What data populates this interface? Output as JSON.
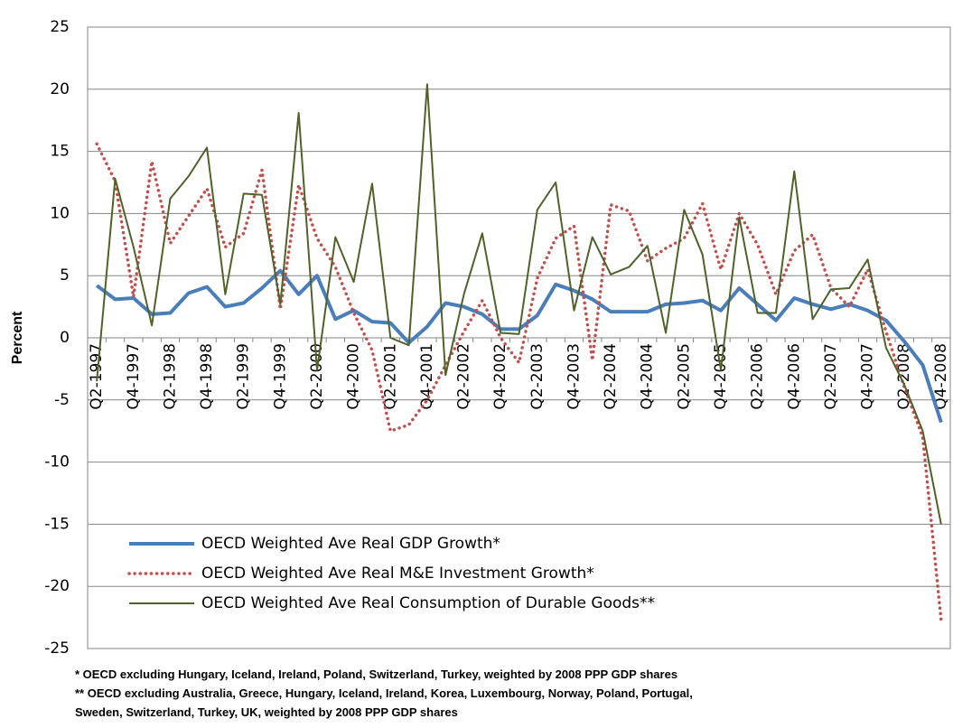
{
  "chart_data": {
    "type": "line",
    "y_label": "Percent",
    "categories": [
      "Q2-1997",
      null,
      "Q4-1997",
      null,
      "Q2-1998",
      null,
      "Q4-1998",
      null,
      "Q2-1999",
      null,
      "Q4-1999",
      null,
      "Q2-2000",
      null,
      "Q4-2000",
      null,
      "Q2-2001",
      null,
      "Q4-2001",
      null,
      "Q2-2002",
      null,
      "Q4-2002",
      null,
      "Q2-2003",
      null,
      "Q4-2003",
      null,
      "Q2-2004",
      null,
      "Q4-2004",
      null,
      "Q2-2005",
      null,
      "Q4-2005",
      null,
      "Q2-2006",
      null,
      "Q4-2006",
      null,
      "Q2-2007",
      null,
      "Q4-2007",
      null,
      "Q2-2008",
      null,
      "Q4-2008"
    ],
    "series": [
      {
        "name": "OECD Weighted Ave Real GDP Growth*",
        "color": "#4a7ebb",
        "style": "solid",
        "width": 4,
        "values": [
          4.2,
          3.1,
          3.2,
          1.9,
          2.0,
          3.6,
          4.1,
          2.5,
          2.8,
          4.0,
          5.4,
          3.5,
          5.0,
          1.5,
          2.2,
          1.3,
          1.2,
          -0.4,
          0.9,
          2.8,
          2.5,
          1.9,
          0.7,
          0.7,
          1.8,
          4.3,
          3.8,
          3.1,
          2.1,
          2.1,
          2.1,
          2.7,
          2.8,
          3.0,
          2.2,
          4.0,
          2.7,
          1.4,
          3.2,
          2.7,
          2.3,
          2.7,
          2.2,
          1.4,
          -0.3,
          -2.2,
          -6.8
        ]
      },
      {
        "name": "OECD Weighted Ave Real M&E Investment Growth*",
        "color": "#c0504d",
        "style": "dotted",
        "width": 3.5,
        "values": [
          15.6,
          12.6,
          3.3,
          14.2,
          7.6,
          9.8,
          12.0,
          7.3,
          8.4,
          13.5,
          2.3,
          12.3,
          8.0,
          5.7,
          2.0,
          -1.0,
          -7.5,
          -7.0,
          -5.0,
          -2.2,
          0.5,
          3.0,
          0.0,
          -2.0,
          4.8,
          8.0,
          9.0,
          -1.8,
          10.7,
          10.2,
          6.2,
          7.2,
          8.0,
          10.8,
          5.5,
          10.0,
          7.5,
          3.5,
          7.0,
          8.3,
          4.0,
          2.5,
          5.5,
          0.5,
          -4.0,
          -8.0,
          -22.7
        ]
      },
      {
        "name": "OECD Weighted Ave Real Consumption of Durable Goods**",
        "color": "#4f6228",
        "style": "solid",
        "width": 2,
        "values": [
          -3.5,
          12.8,
          7.3,
          1.0,
          11.2,
          13.0,
          15.3,
          3.5,
          11.6,
          11.5,
          2.7,
          18.1,
          -2.6,
          8.1,
          4.5,
          12.4,
          0.0,
          -0.6,
          20.4,
          -3.0,
          3.5,
          8.4,
          0.4,
          0.3,
          10.3,
          12.5,
          2.2,
          8.1,
          5.1,
          5.7,
          7.4,
          0.4,
          10.3,
          6.7,
          -2.6,
          9.7,
          2.0,
          2.0,
          13.4,
          1.5,
          3.9,
          4.0,
          6.3,
          -0.8,
          -3.8,
          -7.5,
          -15.0
        ]
      }
    ],
    "ylim": [
      -25,
      25
    ],
    "yticks": [
      -25,
      -20,
      -15,
      -10,
      -5,
      0,
      5,
      10,
      15,
      20,
      25
    ],
    "grid": true,
    "footnotes": [
      "* OECD excluding  Hungary, Iceland, Ireland, Poland, Switzerland, Turkey, weighted by 2008 PPP GDP shares",
      "** OECD excluding  Australia, Greece, Hungary, Iceland, Ireland,  Korea, Luxembourg, Norway, Poland, Portugal,",
      "Sweden, Switzerland, Turkey, UK, weighted by 2008 PPP GDP shares"
    ]
  }
}
